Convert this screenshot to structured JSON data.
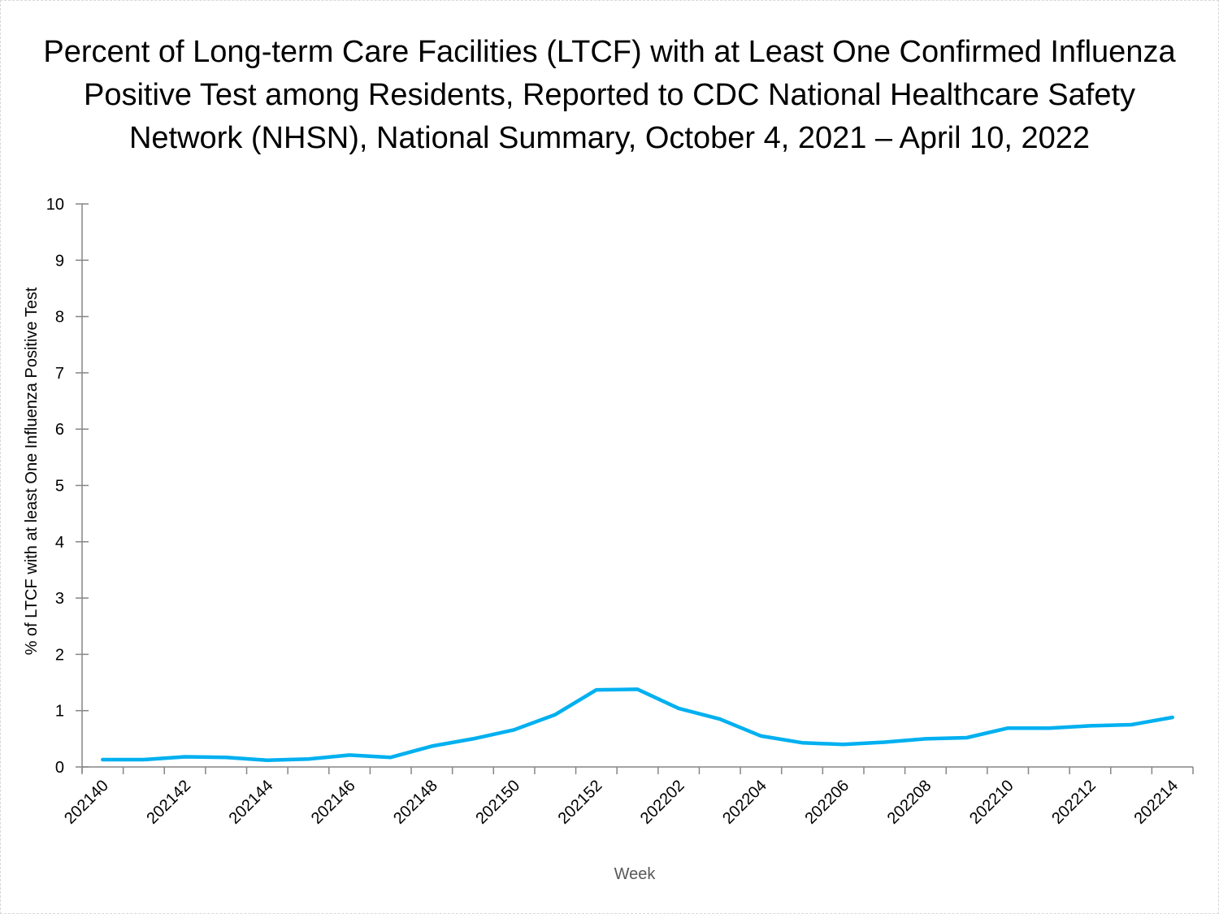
{
  "chart_data": {
    "type": "line",
    "title_lines": [
      "Percent of Long-term Care Facilities (LTCF) with at Least One Confirmed Influenza",
      "Positive Test among Residents, Reported to CDC National Healthcare Safety",
      "Network (NHSN), National Summary, October 4, 2021 – April 10, 2022"
    ],
    "xlabel": "Week",
    "ylabel": "% of LTCF with at least One Influenza Positive Test",
    "ylim": [
      0,
      10
    ],
    "yticks": [
      "0",
      "1",
      "2",
      "3",
      "4",
      "5",
      "6",
      "7",
      "8",
      "9",
      "10"
    ],
    "categories": [
      "202140",
      "202141",
      "202142",
      "202143",
      "202144",
      "202145",
      "202146",
      "202147",
      "202148",
      "202149",
      "202150",
      "202151",
      "202152",
      "202201",
      "202202",
      "202203",
      "202204",
      "202205",
      "202206",
      "202207",
      "202208",
      "202209",
      "202210",
      "202211",
      "202212",
      "202213",
      "202214"
    ],
    "xtick_labels": [
      "202140",
      "202142",
      "202144",
      "202146",
      "202148",
      "202150",
      "202152",
      "202202",
      "202204",
      "202206",
      "202208",
      "202210",
      "202212",
      "202214"
    ],
    "series": [
      {
        "name": "% of LTCF with at least One Influenza Positive Test",
        "color": "#00B0F0",
        "values": [
          0.13,
          0.13,
          0.18,
          0.17,
          0.12,
          0.14,
          0.21,
          0.17,
          0.37,
          0.5,
          0.66,
          0.93,
          1.37,
          1.38,
          1.04,
          0.85,
          0.55,
          0.43,
          0.4,
          0.44,
          0.5,
          0.52,
          0.69,
          0.69,
          0.73,
          0.75,
          0.88
        ]
      }
    ],
    "grid": false,
    "legend": "none"
  }
}
